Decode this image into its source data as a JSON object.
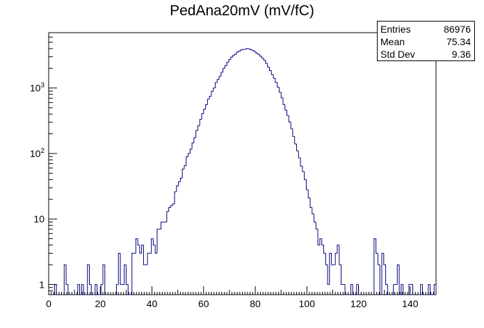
{
  "chart_data": {
    "type": "histogram",
    "title": "PedAna20mV (mV/fC)",
    "xlabel": "",
    "ylabel": "",
    "xlim": [
      0,
      150
    ],
    "ylim": [
      0.7,
      7000
    ],
    "yscale": "log",
    "bin_width": 0.75,
    "line_color": "#000080",
    "x_ticks": [
      0,
      20,
      40,
      60,
      80,
      100,
      120,
      140
    ],
    "x_tick_labels": [
      "0",
      "20",
      "40",
      "60",
      "80",
      "100",
      "120",
      "140"
    ],
    "y_ticks": [
      {
        "value": 1,
        "base": "1",
        "exp": ""
      },
      {
        "value": 10,
        "base": "10",
        "exp": ""
      },
      {
        "value": 100,
        "base": "10",
        "exp": "2"
      },
      {
        "value": 1000,
        "base": "10",
        "exp": "3"
      }
    ],
    "bins": [
      [
        2.25,
        1
      ],
      [
        6.0,
        2
      ],
      [
        6.75,
        1
      ],
      [
        11.25,
        1
      ],
      [
        12.75,
        1
      ],
      [
        15.0,
        2
      ],
      [
        15.75,
        1
      ],
      [
        18.0,
        1
      ],
      [
        20.25,
        1
      ],
      [
        21.0,
        2
      ],
      [
        26.25,
        1
      ],
      [
        27.0,
        3
      ],
      [
        27.75,
        1
      ],
      [
        28.5,
        1
      ],
      [
        29.25,
        2
      ],
      [
        30.0,
        1
      ],
      [
        32.25,
        3
      ],
      [
        33.0,
        3
      ],
      [
        33.75,
        5
      ],
      [
        34.5,
        4
      ],
      [
        35.25,
        3
      ],
      [
        36.0,
        4
      ],
      [
        36.75,
        2
      ],
      [
        37.5,
        2
      ],
      [
        38.25,
        3
      ],
      [
        39.0,
        3
      ],
      [
        39.75,
        5
      ],
      [
        40.5,
        4
      ],
      [
        41.25,
        3
      ],
      [
        42.0,
        7
      ],
      [
        42.75,
        7
      ],
      [
        43.5,
        9
      ],
      [
        44.25,
        9
      ],
      [
        45.0,
        9
      ],
      [
        45.75,
        13
      ],
      [
        46.5,
        15
      ],
      [
        47.25,
        16
      ],
      [
        48.0,
        17
      ],
      [
        48.75,
        26
      ],
      [
        49.5,
        32
      ],
      [
        50.25,
        37
      ],
      [
        51.0,
        42
      ],
      [
        51.75,
        58
      ],
      [
        52.5,
        65
      ],
      [
        53.25,
        89
      ],
      [
        54.0,
        100
      ],
      [
        54.75,
        117
      ],
      [
        55.5,
        145
      ],
      [
        56.25,
        174
      ],
      [
        57.0,
        225
      ],
      [
        57.75,
        266
      ],
      [
        58.5,
        332
      ],
      [
        59.25,
        407
      ],
      [
        60.0,
        473
      ],
      [
        60.75,
        556
      ],
      [
        61.5,
        677
      ],
      [
        62.25,
        748
      ],
      [
        63.0,
        891
      ],
      [
        63.75,
        1000
      ],
      [
        64.5,
        1211
      ],
      [
        65.25,
        1350
      ],
      [
        66.0,
        1506
      ],
      [
        66.75,
        1738
      ],
      [
        67.5,
        1994
      ],
      [
        68.25,
        2187
      ],
      [
        69.0,
        2472
      ],
      [
        69.75,
        2735
      ],
      [
        70.5,
        2968
      ],
      [
        71.25,
        3133
      ],
      [
        72.0,
        3276
      ],
      [
        72.75,
        3538
      ],
      [
        73.5,
        3639
      ],
      [
        74.25,
        3816
      ],
      [
        75.0,
        3878
      ],
      [
        75.75,
        3893
      ],
      [
        76.5,
        4014
      ],
      [
        77.25,
        3962
      ],
      [
        78.0,
        3840
      ],
      [
        78.75,
        3755
      ],
      [
        79.5,
        3591
      ],
      [
        80.25,
        3401
      ],
      [
        81.0,
        3266
      ],
      [
        81.75,
        3057
      ],
      [
        82.5,
        2850
      ],
      [
        83.25,
        2650
      ],
      [
        84.0,
        2382
      ],
      [
        84.75,
        2092
      ],
      [
        85.5,
        1849
      ],
      [
        86.25,
        1600
      ],
      [
        87.0,
        1413
      ],
      [
        87.75,
        1213
      ],
      [
        88.5,
        1031
      ],
      [
        89.25,
        862
      ],
      [
        90.0,
        708
      ],
      [
        90.75,
        560
      ],
      [
        91.5,
        460
      ],
      [
        92.25,
        380
      ],
      [
        93.0,
        304
      ],
      [
        93.75,
        240
      ],
      [
        94.5,
        182
      ],
      [
        95.25,
        140
      ],
      [
        96.0,
        110
      ],
      [
        96.75,
        86
      ],
      [
        97.5,
        64
      ],
      [
        98.25,
        53
      ],
      [
        99.0,
        40
      ],
      [
        99.75,
        28
      ],
      [
        100.5,
        21
      ],
      [
        101.25,
        15
      ],
      [
        102.0,
        12
      ],
      [
        102.75,
        9
      ],
      [
        103.5,
        7
      ],
      [
        104.25,
        4
      ],
      [
        105.0,
        5
      ],
      [
        105.75,
        4
      ],
      [
        106.5,
        3
      ],
      [
        107.25,
        2
      ],
      [
        108.0,
        1
      ],
      [
        108.75,
        3
      ],
      [
        109.5,
        2
      ],
      [
        110.25,
        2
      ],
      [
        111.0,
        3
      ],
      [
        111.75,
        4
      ],
      [
        112.5,
        2
      ],
      [
        113.25,
        1
      ],
      [
        114.0,
        1
      ],
      [
        117.0,
        1
      ],
      [
        119.25,
        1
      ],
      [
        126.0,
        5
      ],
      [
        126.75,
        3
      ],
      [
        127.5,
        2
      ],
      [
        129.0,
        3
      ],
      [
        129.75,
        2
      ],
      [
        130.5,
        1
      ],
      [
        133.5,
        1
      ],
      [
        134.25,
        1
      ],
      [
        135.0,
        2
      ],
      [
        136.5,
        1
      ],
      [
        139.5,
        1
      ],
      [
        140.25,
        1
      ],
      [
        144.0,
        1
      ],
      [
        147.0,
        1
      ],
      [
        149.25,
        1
      ]
    ],
    "stats": [
      {
        "label": "Entries",
        "value": "86976"
      },
      {
        "label": "Mean",
        "value": "75.34"
      },
      {
        "label": "Std Dev",
        "value": "9.36"
      }
    ]
  }
}
